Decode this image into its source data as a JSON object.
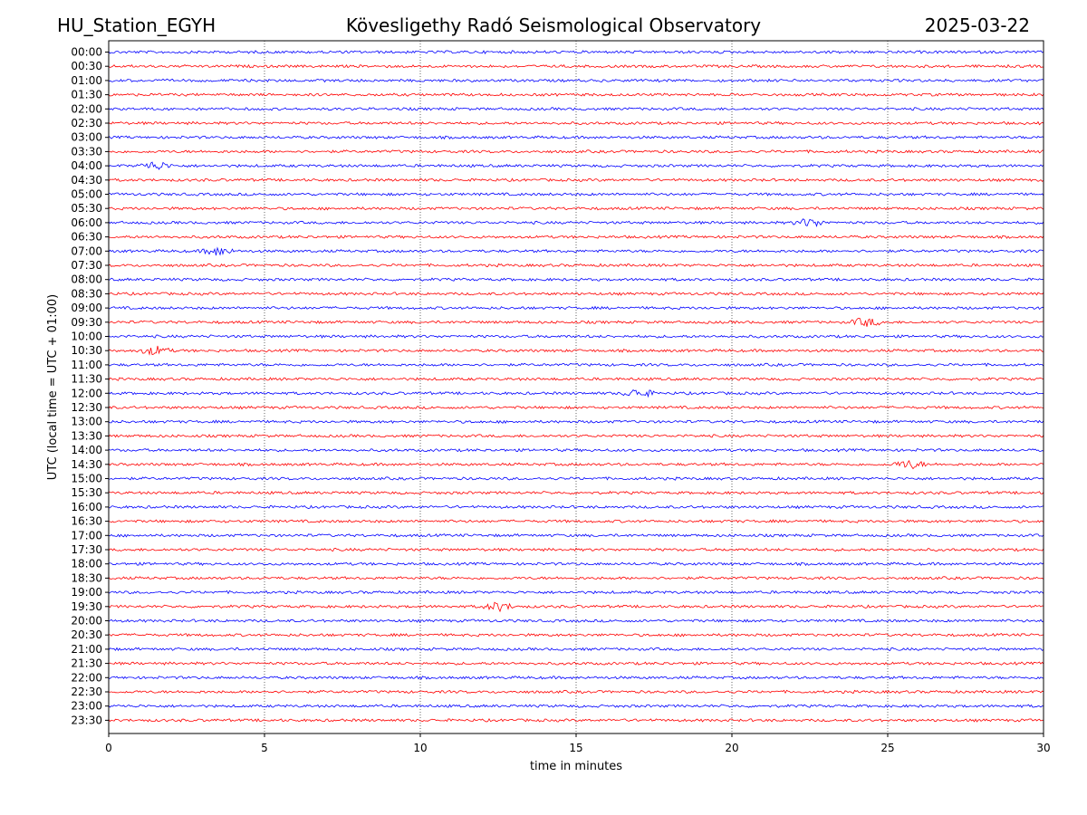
{
  "header": {
    "station": "HU_Station_EGYH",
    "observatory": "Kövesligethy Radó Seismological Observatory",
    "date": "2025-03-22"
  },
  "chart_data": {
    "type": "line",
    "title": "Kövesligethy Radó Seismological Observatory",
    "xlabel": "time in minutes",
    "ylabel": "UTC (local time = UTC + 01:00)",
    "xlim": [
      0,
      30
    ],
    "xticks": [
      0,
      5,
      10,
      15,
      20,
      25,
      30
    ],
    "grid": "vertical dotted at 5-minute intervals",
    "colors": {
      "even_row": "#0000ff",
      "odd_row": "#ff0000"
    },
    "rows": [
      "00:00",
      "00:30",
      "01:00",
      "01:30",
      "02:00",
      "02:30",
      "03:00",
      "03:30",
      "04:00",
      "04:30",
      "05:00",
      "05:30",
      "06:00",
      "06:30",
      "07:00",
      "07:30",
      "08:00",
      "08:30",
      "09:00",
      "09:30",
      "10:00",
      "10:30",
      "11:00",
      "11:30",
      "12:00",
      "12:30",
      "13:00",
      "13:30",
      "14:00",
      "14:30",
      "15:00",
      "15:30",
      "16:00",
      "16:30",
      "17:00",
      "17:30",
      "18:00",
      "18:30",
      "19:00",
      "19:30",
      "20:00",
      "20:30",
      "21:00",
      "21:30",
      "22:00",
      "22:30",
      "23:00",
      "23:30"
    ],
    "events": [
      {
        "row": "04:00",
        "minute": 1.5
      },
      {
        "row": "06:00",
        "minute": 22.5
      },
      {
        "row": "07:00",
        "minute": 3.5
      },
      {
        "row": "09:30",
        "minute": 24.3
      },
      {
        "row": "10:30",
        "minute": 1.5
      },
      {
        "row": "12:00",
        "minute": 17.0
      },
      {
        "row": "14:30",
        "minute": 25.7
      },
      {
        "row": "19:30",
        "minute": 12.5
      }
    ]
  }
}
